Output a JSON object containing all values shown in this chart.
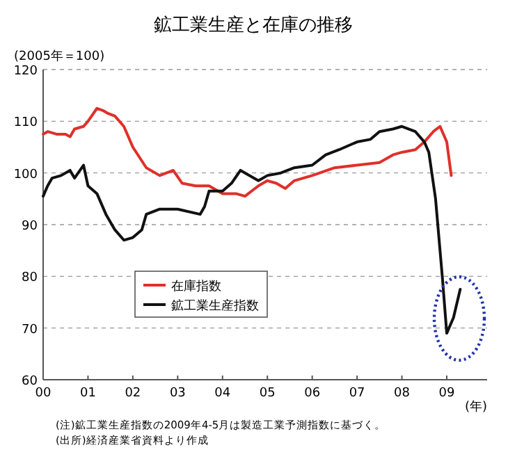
{
  "chart_data": {
    "type": "line",
    "title": "鉱工業生産と在庫の推移",
    "ylabel": "(2005年＝100)",
    "xlabel": "(年)",
    "xlim": [
      2000,
      2009.9
    ],
    "xticks": [
      {
        "value": 2000,
        "label": "00"
      },
      {
        "value": 2001,
        "label": "01"
      },
      {
        "value": 2002,
        "label": "02"
      },
      {
        "value": 2003,
        "label": "03"
      },
      {
        "value": 2004,
        "label": "04"
      },
      {
        "value": 2005,
        "label": "05"
      },
      {
        "value": 2006,
        "label": "06"
      },
      {
        "value": 2007,
        "label": "07"
      },
      {
        "value": 2008,
        "label": "08"
      },
      {
        "value": 2009,
        "label": "09"
      }
    ],
    "ylim": [
      60,
      120
    ],
    "yticks": [
      60,
      70,
      80,
      90,
      100,
      110,
      120
    ],
    "grid": "y",
    "legend": "bottom",
    "line_style": "solid",
    "series": [
      {
        "name": "在庫指数",
        "color": "#e0302a",
        "x": [
          2000.0,
          2000.1,
          2000.3,
          2000.5,
          2000.6,
          2000.7,
          2000.9,
          2001.0,
          2001.2,
          2001.35,
          2001.45,
          2001.6,
          2001.8,
          2002.0,
          2002.3,
          2002.6,
          2002.9,
          2003.1,
          2003.4,
          2003.7,
          2004.0,
          2004.3,
          2004.5,
          2004.8,
          2005.0,
          2005.2,
          2005.4,
          2005.6,
          2006.0,
          2006.5,
          2007.0,
          2007.5,
          2007.8,
          2008.0,
          2008.3,
          2008.5,
          2008.7,
          2008.85,
          2009.0,
          2009.1
        ],
        "values": [
          107.5,
          108,
          107.5,
          107.5,
          107,
          108.5,
          109,
          110,
          112.5,
          112,
          111.5,
          111,
          109,
          105,
          101,
          99.5,
          100.5,
          98,
          97.5,
          97.5,
          96,
          96,
          95.5,
          97.5,
          98.5,
          98,
          97,
          98.5,
          99.5,
          101,
          101.5,
          102,
          103.5,
          104,
          104.5,
          106,
          108,
          109,
          106,
          99.5
        ]
      },
      {
        "name": "鉱工業生産指数",
        "color": "#111111",
        "x": [
          2000.0,
          2000.1,
          2000.2,
          2000.4,
          2000.6,
          2000.7,
          2000.9,
          2001.0,
          2001.2,
          2001.4,
          2001.6,
          2001.8,
          2002.0,
          2002.2,
          2002.3,
          2002.6,
          2003.0,
          2003.5,
          2003.6,
          2003.7,
          2004.0,
          2004.2,
          2004.4,
          2004.8,
          2005.0,
          2005.3,
          2005.6,
          2006.0,
          2006.3,
          2006.6,
          2007.0,
          2007.3,
          2007.5,
          2007.8,
          2008.0,
          2008.3,
          2008.5,
          2008.6,
          2008.75,
          2008.9,
          2009.0,
          2009.15,
          2009.3
        ],
        "values": [
          95.5,
          97.5,
          99,
          99.5,
          100.5,
          99,
          101.5,
          97.5,
          96,
          92,
          89,
          87,
          87.5,
          89,
          92,
          93,
          93,
          92,
          93.5,
          96.5,
          96.5,
          98,
          100.5,
          98.5,
          99.5,
          100,
          101,
          101.5,
          103.5,
          104.5,
          106,
          106.5,
          108,
          108.5,
          109,
          108,
          106,
          104,
          95,
          80,
          69,
          72,
          77.5
        ]
      }
    ],
    "annotations": [
      "(注)鉱工業生産指数の2009年4-5月は製造工業予測指数に基づく。",
      "(出所)経済産業省資料より作成"
    ]
  }
}
